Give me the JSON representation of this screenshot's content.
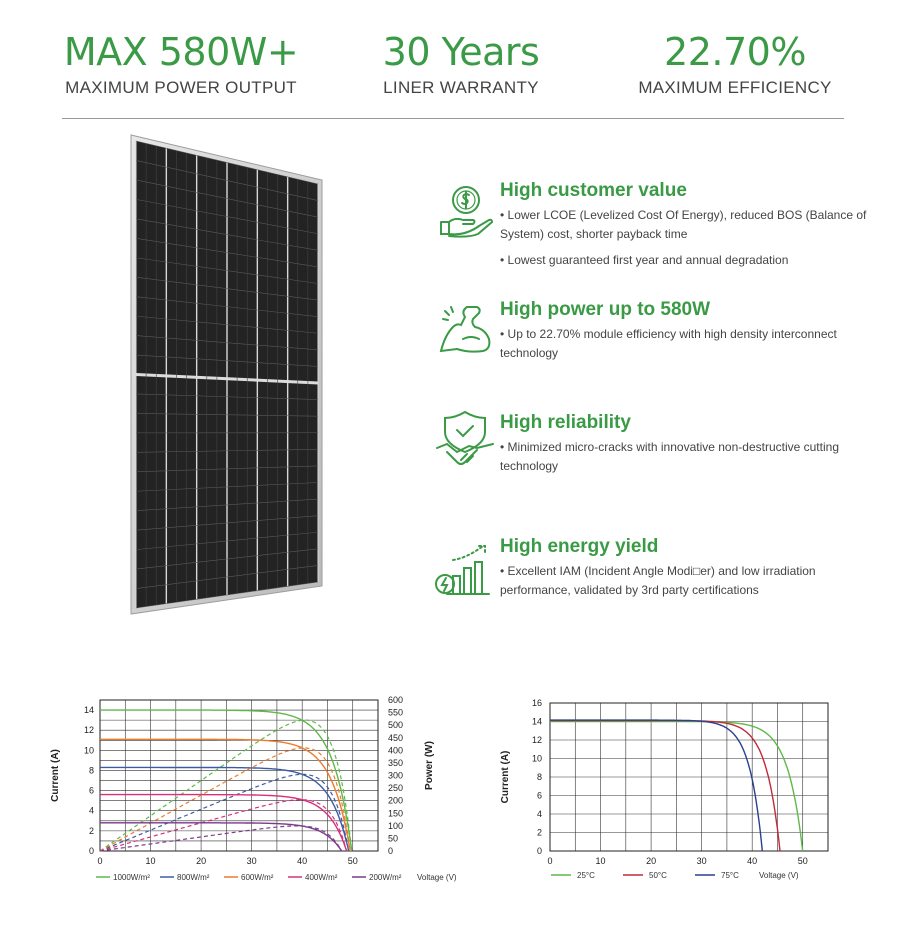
{
  "stats": [
    {
      "value": "MAX 580W+",
      "label": "MAXIMUM POWER OUTPUT"
    },
    {
      "value": "30 Years",
      "label": "LINER WARRANTY"
    },
    {
      "value": "22.70%",
      "label": "MAXIMUM EFFICIENCY"
    }
  ],
  "colors": {
    "accent": "#3a9a45",
    "text": "#444444",
    "rule": "#9a9a9a"
  },
  "features": [
    {
      "icon": "dollar-hand-icon",
      "title": "High customer value",
      "bullets": [
        "• Lower LCOE (Levelized Cost Of Energy), reduced BOS (Balance of System) cost, shorter payback time",
        "• Lowest guaranteed first year and annual degradation"
      ]
    },
    {
      "icon": "flexed-arm-icon",
      "title": "High power up to 580W",
      "bullets": [
        "• Up to 22.70% module efficiency with high density interconnect technology"
      ]
    },
    {
      "icon": "shield-handshake-icon",
      "title": "High reliability",
      "bullets": [
        "• Minimized micro-cracks with innovative non-destructive cutting technology"
      ]
    },
    {
      "icon": "rising-bars-bolt-icon",
      "title": "High energy yield",
      "bullets": [
        "• Excellent IAM (Incident Angle Modi□er) and low irradiation performance, validated by 3rd party certifications"
      ]
    }
  ],
  "chart_data": [
    {
      "type": "line",
      "xlabel": "Voltage (V)",
      "ylabel": "Current (A)",
      "y2label": "Power (W)",
      "xlim": [
        0,
        55
      ],
      "ylim": [
        0,
        15
      ],
      "y2lim": [
        0,
        600
      ],
      "xticks": [
        0,
        10,
        20,
        30,
        40,
        50
      ],
      "yticks": [
        0,
        2,
        4,
        6,
        8,
        10,
        12,
        14
      ],
      "y2ticks": [
        0,
        50,
        100,
        150,
        200,
        250,
        300,
        350,
        400,
        450,
        500,
        550,
        600
      ],
      "legend_position": "bottom",
      "grid": true,
      "series": [
        {
          "name": "1000W/m²",
          "color": "#5fb84a",
          "isc": 14.0,
          "voc": 49.8,
          "vmp": 42.0,
          "imp": 13.5,
          "pmax": 545
        },
        {
          "name": "800W/m²",
          "color": "#3c5aa6",
          "isc": 8.3,
          "voc": 49.2,
          "vmp": 40.5,
          "imp": 7.9,
          "pmax": 320
        },
        {
          "name": "600W/m²",
          "color": "#ec7b2e",
          "isc": 11.1,
          "voc": 49.5,
          "vmp": 41.2,
          "imp": 10.6,
          "pmax": 437
        },
        {
          "name": "400W/m²",
          "color": "#d6307d",
          "isc": 5.6,
          "voc": 48.8,
          "vmp": 40.0,
          "imp": 5.3,
          "pmax": 212
        },
        {
          "name": "200W/m²",
          "color": "#7b3a8a",
          "isc": 2.8,
          "voc": 47.8,
          "vmp": 39.0,
          "imp": 2.6,
          "pmax": 101
        }
      ]
    },
    {
      "type": "line",
      "xlabel": "Voltage (V)",
      "ylabel": "Current (A)",
      "xlim": [
        0,
        55
      ],
      "ylim": [
        0,
        16
      ],
      "xticks": [
        0,
        10,
        20,
        30,
        40,
        50
      ],
      "yticks": [
        0,
        2,
        4,
        6,
        8,
        10,
        12,
        14,
        16
      ],
      "legend_position": "bottom",
      "grid": true,
      "series": [
        {
          "name": "25°C",
          "color": "#5fb84a",
          "isc": 14.0,
          "voc": 50.0
        },
        {
          "name": "50°C",
          "color": "#c22a36",
          "isc": 14.1,
          "voc": 45.5
        },
        {
          "name": "75°C",
          "color": "#2d3f8f",
          "isc": 14.15,
          "voc": 42.0
        }
      ]
    }
  ]
}
